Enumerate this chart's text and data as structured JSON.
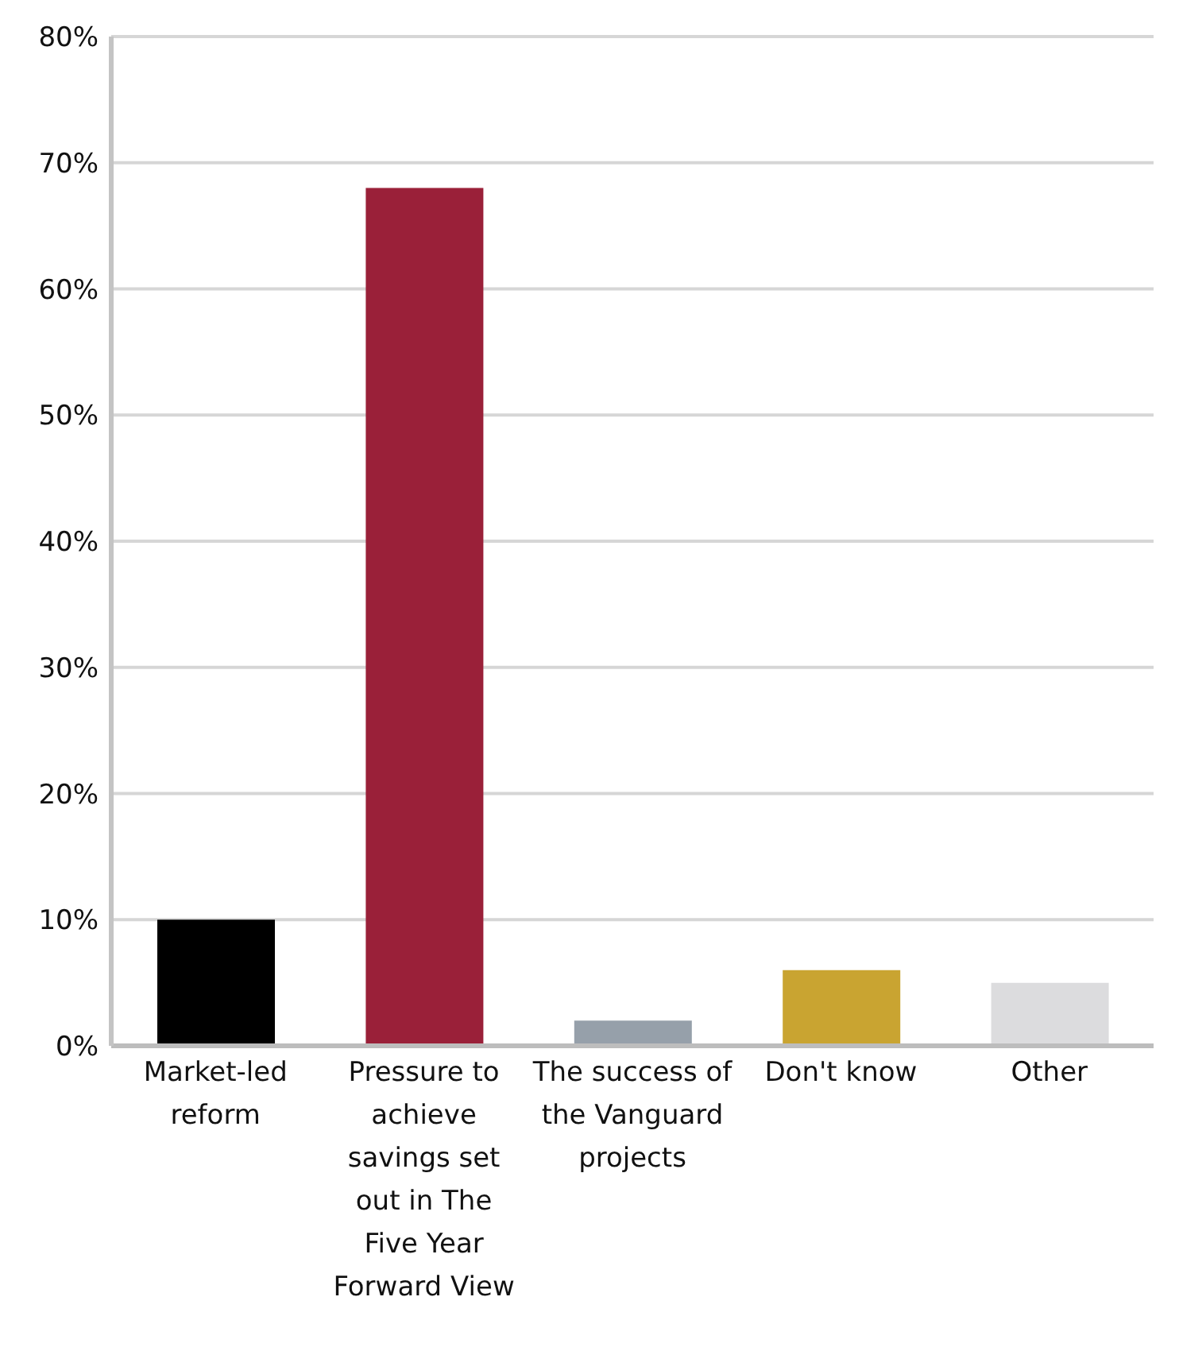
{
  "chart_data": {
    "type": "bar",
    "categories": [
      "Market-led reform",
      "Pressure to achieve savings set out in The Five Year Forward View",
      "The success of the Vanguard projects",
      "Don't know",
      "Other"
    ],
    "values": [
      10,
      68,
      2,
      6,
      5
    ],
    "colors": [
      "#000000",
      "#9a2039",
      "#96a0aa",
      "#c9a431",
      "#dcdcde"
    ],
    "ylim": [
      0,
      80
    ],
    "yticks": [
      {
        "value": 0,
        "label": "0%"
      },
      {
        "value": 10,
        "label": "10%"
      },
      {
        "value": 20,
        "label": "20%"
      },
      {
        "value": 30,
        "label": "30%"
      },
      {
        "value": 40,
        "label": "40%"
      },
      {
        "value": 50,
        "label": "50%"
      },
      {
        "value": 60,
        "label": "60%"
      },
      {
        "value": 70,
        "label": "70%"
      },
      {
        "value": 80,
        "label": "80%"
      }
    ],
    "grid": "y"
  }
}
